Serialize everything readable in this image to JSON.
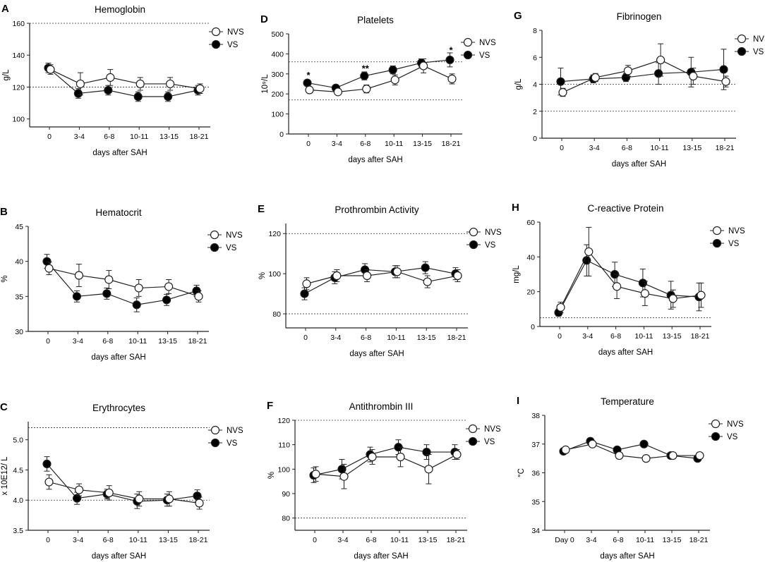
{
  "figure": {
    "xlabel": "days after SAH",
    "legend": {
      "nvs": "NVS",
      "vs": "VS"
    },
    "colors": {
      "nvs_fill": "#ffffff",
      "vs_fill": "#000000",
      "line": "#222222",
      "ref": "#333333"
    }
  },
  "chart_data": [
    {
      "panel": "A",
      "type": "line",
      "title": "Hemoglobin",
      "ylabel": "g/L",
      "categories": [
        "0",
        "3-4",
        "6-8",
        "10-11",
        "13-15",
        "18-21"
      ],
      "ylim": [
        95,
        160
      ],
      "yticks": [
        100,
        120,
        140,
        160
      ],
      "ref_lines": [
        120,
        160
      ],
      "series": [
        {
          "name": "NVS",
          "values": [
            131,
            122,
            126,
            122,
            122,
            119
          ],
          "err": [
            3,
            7,
            5,
            4,
            4,
            3
          ]
        },
        {
          "name": "VS",
          "values": [
            132,
            116,
            118,
            114,
            114,
            118
          ],
          "err": [
            3,
            3,
            3,
            3,
            3,
            3
          ]
        }
      ],
      "annotations": []
    },
    {
      "panel": "D",
      "type": "line",
      "title": "Platelets",
      "ylabel": "10⁹/L",
      "categories": [
        "0",
        "3-4",
        "6-8",
        "10-11",
        "13-15",
        "18-21"
      ],
      "ylim": [
        0,
        500
      ],
      "yticks": [
        0,
        100,
        200,
        300,
        400,
        500
      ],
      "ref_lines": [
        170,
        360
      ],
      "series": [
        {
          "name": "NVS",
          "values": [
            220,
            210,
            225,
            270,
            340,
            275
          ],
          "err": [
            15,
            10,
            20,
            25,
            35,
            25
          ]
        },
        {
          "name": "VS",
          "values": [
            255,
            230,
            290,
            320,
            355,
            370
          ],
          "err": [
            15,
            15,
            20,
            20,
            20,
            35
          ]
        }
      ],
      "annotations": [
        {
          "x": "0",
          "text": "*",
          "y": 295
        },
        {
          "x": "6-8",
          "text": "**",
          "y": 330
        },
        {
          "x": "18-21",
          "text": "*",
          "y": 420
        }
      ]
    },
    {
      "panel": "G",
      "type": "line",
      "title": "Fibrinogen",
      "ylabel": "g/L",
      "categories": [
        "0",
        "3-4",
        "6-8",
        "10-11",
        "13-15",
        "18-21"
      ],
      "ylim": [
        0,
        8
      ],
      "yticks": [
        0,
        2,
        4,
        6,
        8
      ],
      "ref_lines": [
        2,
        4
      ],
      "series": [
        {
          "name": "NVS",
          "values": [
            3.4,
            4.5,
            5.0,
            5.8,
            4.6,
            4.2
          ],
          "err": [
            0.3,
            0.3,
            0.4,
            1.2,
            0.6,
            0.4
          ]
        },
        {
          "name": "VS",
          "values": [
            4.2,
            4.4,
            4.5,
            4.8,
            4.9,
            5.1
          ],
          "err": [
            1.0,
            0.3,
            0.3,
            0.8,
            1.1,
            1.5
          ]
        }
      ],
      "annotations": []
    },
    {
      "panel": "B",
      "type": "line",
      "title": "Hematocrit",
      "ylabel": "%",
      "categories": [
        "0",
        "3-4",
        "6-8",
        "10-11",
        "13-15",
        "18-21"
      ],
      "ylim": [
        30,
        45
      ],
      "yticks": [
        30,
        35,
        40,
        45
      ],
      "ref_lines": [],
      "series": [
        {
          "name": "NVS",
          "values": [
            39.0,
            38.0,
            37.4,
            36.2,
            36.4,
            35.0
          ],
          "err": [
            0.9,
            1.6,
            1.3,
            1.2,
            1.0,
            0.8
          ]
        },
        {
          "name": "VS",
          "values": [
            40.0,
            35.0,
            35.4,
            33.8,
            34.5,
            35.8
          ],
          "err": [
            1.0,
            0.8,
            0.8,
            1.0,
            0.8,
            0.8
          ]
        }
      ],
      "annotations": []
    },
    {
      "panel": "E",
      "type": "line",
      "title": "Prothrombin Activity",
      "ylabel": "%",
      "categories": [
        "0",
        "3-4",
        "6-8",
        "10-11",
        "13-15",
        "18-21"
      ],
      "ylim": [
        73,
        125
      ],
      "yticks": [
        80,
        100,
        120
      ],
      "ref_lines": [
        80,
        120
      ],
      "series": [
        {
          "name": "NVS",
          "values": [
            95,
            99,
            99,
            101,
            96,
            99
          ],
          "err": [
            3,
            3,
            3,
            3,
            3,
            3
          ]
        },
        {
          "name": "VS",
          "values": [
            90,
            98,
            102,
            101,
            103,
            100
          ],
          "err": [
            3,
            3,
            3,
            3,
            3,
            3
          ]
        }
      ],
      "annotations": []
    },
    {
      "panel": "H",
      "type": "line",
      "title": "C-reactive Protein",
      "ylabel": "mg/L",
      "categories": [
        "0",
        "3-4",
        "6-8",
        "10-11",
        "13-15",
        "18-21"
      ],
      "ylim": [
        0,
        60
      ],
      "yticks": [
        0,
        20,
        40,
        60
      ],
      "ref_lines": [
        5
      ],
      "series": [
        {
          "name": "NVS",
          "values": [
            11,
            43,
            23,
            19,
            16,
            18
          ],
          "err": [
            3,
            14,
            7,
            7,
            5,
            7
          ]
        },
        {
          "name": "VS",
          "values": [
            8,
            38,
            30,
            25,
            18,
            17
          ],
          "err": [
            2,
            9,
            7,
            8,
            8,
            8
          ]
        }
      ],
      "annotations": []
    },
    {
      "panel": "C",
      "type": "line",
      "title": "Erythrocytes",
      "ylabel": "x 10E12/ L",
      "categories": [
        "0",
        "3-4",
        "6-8",
        "10-11",
        "13-15",
        "18-21"
      ],
      "ylim": [
        3.5,
        5.3
      ],
      "yticks": [
        3.5,
        4.0,
        4.5,
        5.0
      ],
      "ref_lines": [
        4.0,
        5.2
      ],
      "series": [
        {
          "name": "NVS",
          "values": [
            4.3,
            4.17,
            4.12,
            4.02,
            4.02,
            3.95
          ],
          "err": [
            0.12,
            0.1,
            0.12,
            0.12,
            0.12,
            0.1
          ]
        },
        {
          "name": "VS",
          "values": [
            4.6,
            4.03,
            4.1,
            3.98,
            4.0,
            4.07
          ],
          "err": [
            0.12,
            0.1,
            0.08,
            0.12,
            0.1,
            0.1
          ]
        }
      ],
      "annotations": []
    },
    {
      "panel": "F",
      "type": "line",
      "title": "Antithrombin III",
      "ylabel": "%",
      "categories": [
        "0",
        "3-4",
        "6-8",
        "10-11",
        "13-15",
        "18-21"
      ],
      "ylim": [
        75,
        120
      ],
      "yticks": [
        80,
        90,
        100,
        110,
        120
      ],
      "ref_lines": [
        80,
        120
      ],
      "series": [
        {
          "name": "NVS",
          "values": [
            98,
            97,
            105,
            105,
            100,
            106
          ],
          "err": [
            3,
            5,
            3,
            4,
            6,
            2
          ]
        },
        {
          "name": "VS",
          "values": [
            97.5,
            100,
            106,
            109,
            107,
            107
          ],
          "err": [
            3,
            4,
            3,
            3,
            3,
            3
          ]
        }
      ],
      "annotations": []
    },
    {
      "panel": "I",
      "type": "line",
      "title": "Temperature",
      "ylabel": "°C",
      "categories": [
        "Day 0",
        "3-4",
        "6-8",
        "10-11",
        "13-15",
        "18-21"
      ],
      "ylim": [
        34,
        38
      ],
      "yticks": [
        34,
        35,
        36,
        37,
        38
      ],
      "ref_lines": [],
      "series": [
        {
          "name": "NVS",
          "values": [
            36.8,
            37.0,
            36.6,
            36.5,
            36.6,
            36.6
          ],
          "err": [
            0.05,
            0.1,
            0.1,
            0.05,
            0.05,
            0.05
          ]
        },
        {
          "name": "VS",
          "values": [
            36.75,
            37.1,
            36.8,
            37.0,
            36.6,
            36.5
          ],
          "err": [
            0.05,
            0.1,
            0.1,
            0.05,
            0.05,
            0.05
          ]
        }
      ],
      "annotations": []
    }
  ]
}
